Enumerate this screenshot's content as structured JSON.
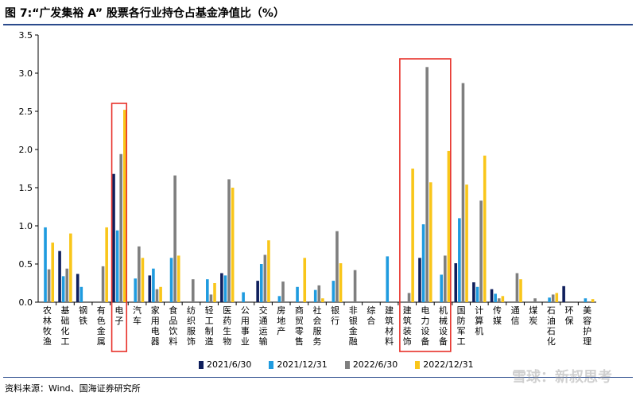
{
  "title": "图 7:“广发集裕 A” 股票各行业持仓占基金净值比（%）",
  "source": "资料来源：Wind、国海证券研究所",
  "watermark": "雪球：新叔思考",
  "chart_data": {
    "type": "bar",
    "title": "图 7:“广发集裕 A” 股票各行业持仓占基金净值比（%）",
    "xlabel": "",
    "ylabel": "",
    "ylim": [
      0,
      3.5
    ],
    "yticks": [
      "0.0",
      "0.5",
      "1.0",
      "1.5",
      "2.0",
      "2.5",
      "3.0",
      "3.5"
    ],
    "grid": false,
    "legend_position": "bottom",
    "categories": [
      "农林牧渔",
      "基础化工",
      "钢铁",
      "有色金属",
      "电子",
      "汽车",
      "家用电器",
      "食品饮料",
      "纺织服饰",
      "轻工制造",
      "医药生物",
      "公用事业",
      "交通运输",
      "房地产",
      "商贸零售",
      "社会服务",
      "银行",
      "非银金融",
      "综合",
      "建筑材料",
      "建筑装饰",
      "电力设备",
      "机械设备",
      "国防军工",
      "计算机",
      "传媒",
      "通信",
      "煤炭",
      "石油石化",
      "环保",
      "美容护理"
    ],
    "series": [
      {
        "name": "2021/6/30",
        "color": "#0f1f5c",
        "values": [
          0,
          0.67,
          0.37,
          0,
          1.68,
          0,
          0.35,
          0,
          0,
          0,
          0.38,
          0,
          0.28,
          0,
          0,
          0,
          0,
          0,
          0,
          0,
          0,
          0.58,
          0,
          0.51,
          0.26,
          0.17,
          0,
          0,
          0,
          0.21,
          0
        ]
      },
      {
        "name": "2021/12/31",
        "color": "#1f9bdf",
        "values": [
          0.98,
          0.34,
          0.2,
          0,
          0.94,
          0.31,
          0.44,
          0.58,
          0,
          0.3,
          0.35,
          0.13,
          0.5,
          0.08,
          0.2,
          0.16,
          0.28,
          0,
          0,
          0.6,
          0,
          1.02,
          0.36,
          1.1,
          0.2,
          0.11,
          0,
          0,
          0.06,
          0,
          0.05
        ]
      },
      {
        "name": "2022/6/30",
        "color": "#7f7f7f",
        "values": [
          0.43,
          0.44,
          0,
          0.47,
          1.94,
          0.73,
          0.17,
          1.66,
          0.3,
          0.1,
          1.61,
          0,
          0.62,
          0.27,
          0,
          0.22,
          0.93,
          0.42,
          0,
          0,
          0.12,
          3.08,
          0.61,
          2.87,
          1.33,
          0.05,
          0.38,
          0.05,
          0.1,
          0,
          0
        ]
      },
      {
        "name": "2022/12/31",
        "color": "#f9c61a",
        "values": [
          0.78,
          0.9,
          0,
          0.98,
          2.52,
          0.58,
          0.2,
          0.61,
          0,
          0.25,
          1.5,
          0,
          0.81,
          0,
          0.58,
          0.05,
          0.51,
          0,
          0,
          0,
          1.75,
          1.57,
          1.98,
          1.54,
          1.92,
          0.08,
          0.3,
          0,
          0.12,
          0,
          0.04
        ]
      }
    ],
    "highlight_color": "#e8312a",
    "highlight_boxes": [
      [
        "电子"
      ],
      [
        "建筑装饰",
        "电力设备",
        "机械设备"
      ]
    ]
  }
}
